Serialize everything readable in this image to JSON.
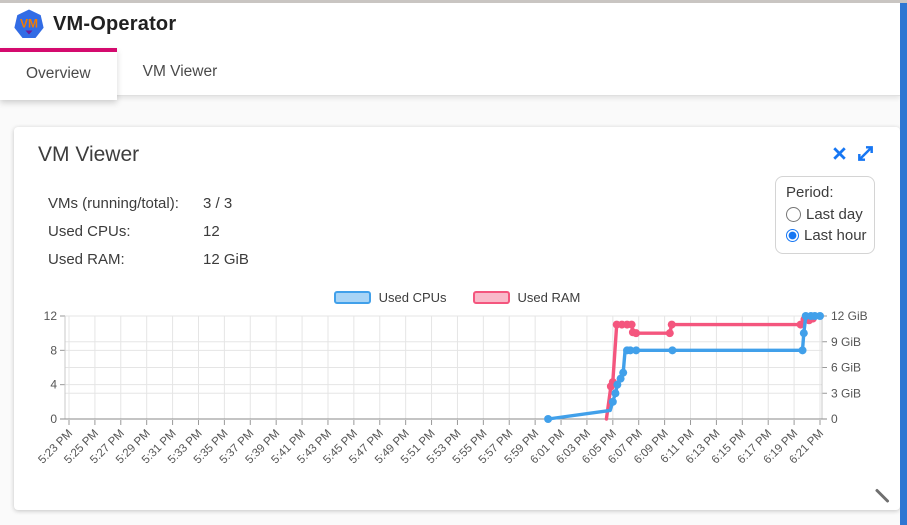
{
  "app": {
    "title": "VM-Operator",
    "logo_text": "VM"
  },
  "tabs": [
    {
      "label": "Overview",
      "active": true
    },
    {
      "label": "VM Viewer",
      "active": false
    }
  ],
  "panel": {
    "title": "VM Viewer",
    "icons": [
      "close-icon",
      "expand-icon"
    ],
    "stats": [
      {
        "label": "VMs (running/total):",
        "value": "3 / 3"
      },
      {
        "label": "Used CPUs:",
        "value": "12"
      },
      {
        "label": "Used RAM:",
        "value": "12 GiB"
      }
    ],
    "period": {
      "label": "Period:",
      "options": [
        {
          "label": "Last day",
          "selected": false
        },
        {
          "label": "Last hour",
          "selected": true
        }
      ]
    }
  },
  "chart_data": {
    "type": "line",
    "title": "",
    "legend_position": "top-center",
    "grid": true,
    "x_axis": {
      "labels": [
        "5:23 PM",
        "5:25 PM",
        "5:27 PM",
        "5:29 PM",
        "5:31 PM",
        "5:33 PM",
        "5:35 PM",
        "5:37 PM",
        "5:39 PM",
        "5:41 PM",
        "5:43 PM",
        "5:45 PM",
        "5:47 PM",
        "5:49 PM",
        "5:51 PM",
        "5:53 PM",
        "5:55 PM",
        "5:57 PM",
        "5:59 PM",
        "6:01 PM",
        "6:03 PM",
        "6:05 PM",
        "6:07 PM",
        "6:09 PM",
        "6:11 PM",
        "6:13 PM",
        "6:15 PM",
        "6:17 PM",
        "6:19 PM",
        "6:21 PM"
      ],
      "unit": "minutes since 5:23 PM",
      "total_minutes": 58
    },
    "y_axis_left": {
      "ticks": [
        0,
        4,
        8,
        12
      ],
      "labels": [
        "0",
        "4",
        "8",
        "12"
      ],
      "range": [
        0,
        12
      ]
    },
    "y_axis_right": {
      "ticks": [
        0,
        3,
        6,
        9,
        12
      ],
      "labels": [
        "0",
        "3 GiB",
        "6 GiB",
        "9 GiB",
        "12 GiB"
      ],
      "range": [
        0,
        12
      ]
    },
    "series": [
      {
        "name": "Used RAM",
        "axis": "right",
        "unit": "GiB",
        "color": "#f4567e",
        "fill": "#f9baca",
        "points": [
          [
            41.5,
            0,
            0
          ],
          [
            41.85,
            3.8,
            1
          ],
          [
            42.0,
            4.3,
            1
          ],
          [
            42.3,
            11,
            1
          ],
          [
            42.7,
            11,
            1
          ],
          [
            43.1,
            11,
            1
          ],
          [
            43.45,
            11,
            1
          ],
          [
            43.55,
            10.1,
            1
          ],
          [
            43.8,
            10,
            1
          ],
          [
            46.4,
            10,
            1
          ],
          [
            46.55,
            11,
            1
          ],
          [
            56.5,
            11,
            1
          ],
          [
            56.8,
            11.6,
            1
          ],
          [
            57.15,
            11.5,
            1
          ],
          [
            57.45,
            11.7,
            1
          ]
        ]
      },
      {
        "name": "Used CPUs",
        "axis": "left",
        "unit": "CPUs",
        "color": "#41a0ea",
        "fill": "#a8d4f6",
        "points": [
          [
            37.0,
            0,
            1
          ],
          [
            41.8,
            1,
            0
          ],
          [
            42.0,
            2,
            1
          ],
          [
            42.2,
            3,
            1
          ],
          [
            42.35,
            4,
            1
          ],
          [
            42.6,
            4.7,
            1
          ],
          [
            42.8,
            5.4,
            1
          ],
          [
            42.95,
            8,
            0
          ],
          [
            43.1,
            8,
            1
          ],
          [
            43.35,
            8,
            1
          ],
          [
            43.8,
            8,
            1
          ],
          [
            46.6,
            8,
            1
          ],
          [
            56.65,
            8,
            1
          ],
          [
            56.75,
            10,
            1
          ],
          [
            56.9,
            12,
            1
          ],
          [
            57.3,
            12,
            1
          ],
          [
            57.6,
            12,
            1
          ],
          [
            58.0,
            12,
            1
          ]
        ]
      }
    ]
  },
  "colors": {
    "accent_blue": "#1676f3",
    "tab_indicator": "#d40a6e",
    "right_strip": "#2e76d2",
    "logo_blue": "#326ce5",
    "logo_text_orange": "#f57c00",
    "grid_line": "#e5e5e5",
    "axis_line": "#c9c9c9",
    "bottom_axis": "#8a8a8a"
  }
}
